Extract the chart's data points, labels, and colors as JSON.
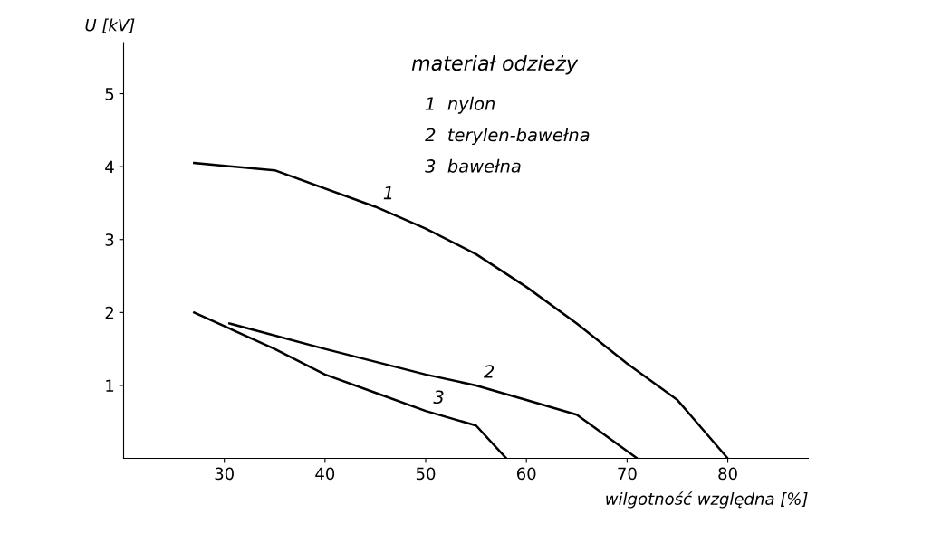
{
  "chart_data": {
    "type": "line",
    "title": "materiał odzieży",
    "xlabel": "wilgotność względna [%]",
    "ylabel": "U [kV]",
    "series": [
      {
        "color": "#000000",
        "x": [
          27,
          35,
          45,
          50,
          55,
          60,
          65,
          70,
          75,
          80
        ],
        "values": [
          4.05,
          3.95,
          3.45,
          3.15,
          2.8,
          2.35,
          1.85,
          1.3,
          0.8,
          0
        ]
      },
      {
        "color": "#000000",
        "x": [
          30.5,
          40,
          50,
          55,
          60,
          65,
          71
        ],
        "values": [
          1.85,
          1.5,
          1.15,
          1.0,
          0.8,
          0.6,
          0
        ]
      },
      {
        "color": "#000000",
        "x": [
          27,
          35,
          40,
          45,
          50,
          55,
          58
        ],
        "values": [
          2.0,
          1.5,
          1.15,
          0.9,
          0.65,
          0.45,
          0
        ]
      }
    ],
    "annotations": [
      {
        "text": "1",
        "x": 45,
        "y": 3.45
      },
      {
        "text": "2",
        "x": 55,
        "y": 1.0
      },
      {
        "text": "3",
        "x": 50,
        "y": 0.65
      },
      "1  nylon",
      "2  terylen-bawełna",
      "3  bawełna"
    ],
    "xlim": [
      20,
      88
    ],
    "ylim": [
      0,
      5.7
    ],
    "xticks": [
      30,
      40,
      50,
      60,
      70,
      80
    ],
    "yticks": [
      1,
      2,
      3,
      4,
      5
    ],
    "grid": false,
    "legend": false,
    "marker": "none",
    "line_style": "solid"
  }
}
